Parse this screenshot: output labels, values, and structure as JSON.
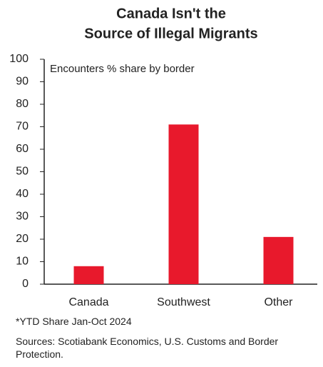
{
  "chart_data": {
    "type": "bar",
    "title": [
      "Canada Isn't the",
      "Source of Illegal Migrants"
    ],
    "annotation": "Encounters % share by border",
    "categories": [
      "Canada",
      "Southwest",
      "Other"
    ],
    "values": [
      8,
      71,
      21
    ],
    "color": "#e8192c",
    "ylim": [
      0,
      100
    ],
    "yticks": [
      0,
      10,
      20,
      30,
      40,
      50,
      60,
      70,
      80,
      90,
      100
    ],
    "grid": false,
    "notes": [
      "*YTD Share Jan-Oct 2024",
      "Sources: Scotiabank Economics, U.S. Customs and Border Protection."
    ]
  }
}
